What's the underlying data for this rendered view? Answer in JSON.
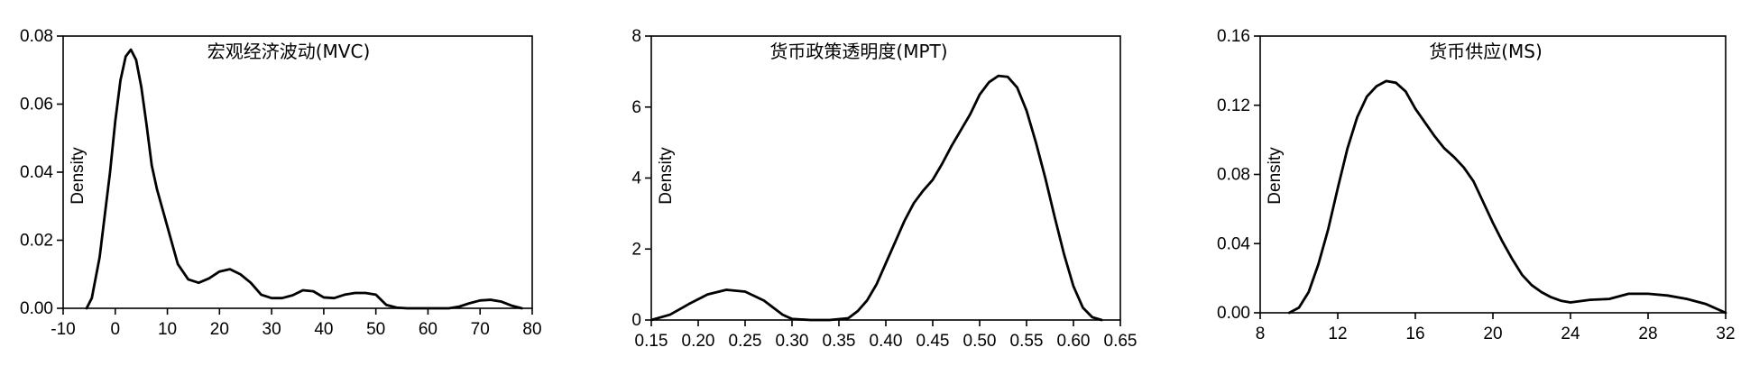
{
  "chart_data": [
    {
      "type": "line",
      "title": "宏观经济波动(MVC)",
      "ylabel": "Density",
      "xlabel": "",
      "xlim": [
        -10,
        80
      ],
      "ylim": [
        0,
        0.08
      ],
      "xticks": [
        -10,
        0,
        10,
        20,
        30,
        40,
        50,
        60,
        70,
        80
      ],
      "yticks": [
        0.0,
        0.02,
        0.04,
        0.06,
        0.08
      ],
      "xtick_labels": [
        "-10",
        "0",
        "10",
        "20",
        "30",
        "40",
        "50",
        "60",
        "70",
        "80"
      ],
      "ytick_labels": [
        "0.00",
        "0.02",
        "0.04",
        "0.06",
        "0.08"
      ],
      "series": [
        {
          "x": [
            -5.5,
            -4.5,
            -3,
            -1,
            0,
            1,
            2,
            3,
            4,
            5,
            6,
            7,
            8,
            10,
            12,
            14,
            16,
            18,
            20,
            22,
            24,
            26,
            28,
            30,
            32,
            34,
            36,
            38,
            40,
            42,
            44,
            46,
            48,
            50,
            52,
            54,
            56,
            58,
            60,
            62,
            64,
            66,
            68,
            70,
            72,
            74,
            76,
            78
          ],
          "y": [
            0.0,
            0.003,
            0.015,
            0.04,
            0.055,
            0.067,
            0.074,
            0.076,
            0.073,
            0.065,
            0.054,
            0.042,
            0.035,
            0.024,
            0.013,
            0.0085,
            0.0075,
            0.0088,
            0.0108,
            0.0115,
            0.01,
            0.0075,
            0.004,
            0.003,
            0.003,
            0.0038,
            0.0053,
            0.005,
            0.0032,
            0.003,
            0.004,
            0.0045,
            0.0045,
            0.004,
            0.001,
            0.0002,
            0.0,
            0.0,
            0.0,
            0.0,
            0.0,
            0.0005,
            0.0015,
            0.0023,
            0.0025,
            0.002,
            0.0008,
            0.0
          ]
        }
      ]
    },
    {
      "type": "line",
      "title": "货币政策透明度(MPT)",
      "ylabel": "Density",
      "xlabel": "",
      "xlim": [
        0.15,
        0.65
      ],
      "ylim": [
        0,
        8
      ],
      "xticks": [
        0.15,
        0.2,
        0.25,
        0.3,
        0.35,
        0.4,
        0.45,
        0.5,
        0.55,
        0.6,
        0.65
      ],
      "yticks": [
        0,
        2,
        4,
        6,
        8
      ],
      "xtick_labels": [
        "0.15",
        "0.20",
        "0.25",
        "0.30",
        "0.35",
        "0.40",
        "0.45",
        "0.50",
        "0.55",
        "0.60",
        "0.65"
      ],
      "ytick_labels": [
        "0",
        "2",
        "4",
        "6",
        "8"
      ],
      "series": [
        {
          "x": [
            0.15,
            0.17,
            0.19,
            0.21,
            0.23,
            0.25,
            0.27,
            0.29,
            0.3,
            0.32,
            0.34,
            0.36,
            0.37,
            0.38,
            0.39,
            0.4,
            0.41,
            0.42,
            0.43,
            0.44,
            0.45,
            0.46,
            0.47,
            0.48,
            0.49,
            0.5,
            0.51,
            0.52,
            0.53,
            0.54,
            0.55,
            0.56,
            0.57,
            0.58,
            0.59,
            0.6,
            0.61,
            0.62,
            0.63
          ],
          "y": [
            0.0,
            0.15,
            0.45,
            0.72,
            0.85,
            0.8,
            0.55,
            0.15,
            0.03,
            0.0,
            0.0,
            0.05,
            0.25,
            0.55,
            1.0,
            1.6,
            2.2,
            2.8,
            3.3,
            3.65,
            3.95,
            4.4,
            4.9,
            5.35,
            5.8,
            6.35,
            6.7,
            6.88,
            6.85,
            6.55,
            5.9,
            5.0,
            4.0,
            2.9,
            1.85,
            0.95,
            0.35,
            0.08,
            0.0
          ]
        }
      ]
    },
    {
      "type": "line",
      "title": "货币供应(MS)",
      "ylabel": "Density",
      "xlabel": "",
      "xlim": [
        8,
        32
      ],
      "ylim": [
        0,
        0.16
      ],
      "xticks": [
        8,
        12,
        16,
        20,
        24,
        28,
        32
      ],
      "yticks": [
        0.0,
        0.04,
        0.08,
        0.12,
        0.16
      ],
      "xtick_labels": [
        "8",
        "12",
        "16",
        "20",
        "24",
        "28",
        "32"
      ],
      "ytick_labels": [
        "0.00",
        "0.04",
        "0.08",
        "0.12",
        "0.16"
      ],
      "series": [
        {
          "x": [
            9.5,
            10.0,
            10.5,
            11.0,
            11.5,
            12.0,
            12.5,
            13.0,
            13.5,
            14.0,
            14.5,
            15.0,
            15.5,
            16.0,
            16.5,
            17.0,
            17.5,
            18.0,
            18.5,
            19.0,
            19.5,
            20.0,
            20.5,
            21.0,
            21.5,
            22.0,
            22.5,
            23.0,
            23.5,
            24.0,
            25.0,
            26.0,
            27.0,
            28.0,
            29.0,
            30.0,
            31.0,
            32.0
          ],
          "y": [
            0.0,
            0.003,
            0.012,
            0.028,
            0.048,
            0.072,
            0.095,
            0.113,
            0.125,
            0.131,
            0.134,
            0.133,
            0.128,
            0.118,
            0.11,
            0.102,
            0.095,
            0.09,
            0.084,
            0.076,
            0.064,
            0.052,
            0.041,
            0.031,
            0.022,
            0.016,
            0.012,
            0.009,
            0.007,
            0.006,
            0.0075,
            0.008,
            0.011,
            0.011,
            0.01,
            0.008,
            0.005,
            0.0
          ]
        }
      ]
    }
  ]
}
